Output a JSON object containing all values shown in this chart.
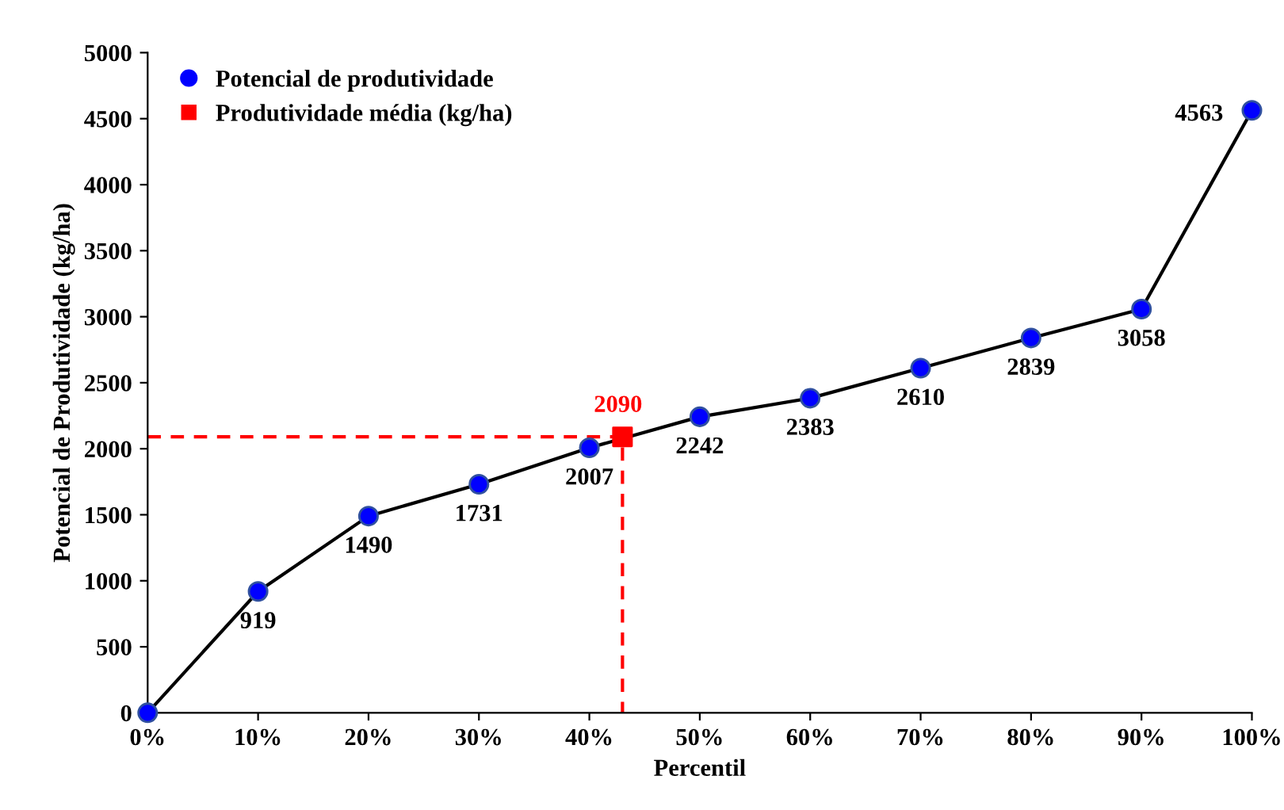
{
  "chart_data": {
    "type": "line",
    "xlabel": "Percentil",
    "ylabel": "Potencial de Produtividade (kg/ha)",
    "xlim": [
      0,
      100
    ],
    "xticks": [
      {
        "value": 0,
        "label": "0%"
      },
      {
        "value": 10,
        "label": "10%"
      },
      {
        "value": 20,
        "label": "20%"
      },
      {
        "value": 30,
        "label": "30%"
      },
      {
        "value": 40,
        "label": "40%"
      },
      {
        "value": 50,
        "label": "50%"
      },
      {
        "value": 60,
        "label": "60%"
      },
      {
        "value": 70,
        "label": "70%"
      },
      {
        "value": 80,
        "label": "80%"
      },
      {
        "value": 90,
        "label": "90%"
      },
      {
        "value": 100,
        "label": "100%"
      }
    ],
    "ylim": [
      0,
      5000
    ],
    "yticks": [
      0,
      500,
      1000,
      1500,
      2000,
      2500,
      3000,
      3500,
      4000,
      4500,
      5000
    ],
    "grid": false,
    "legend": "top left",
    "series": [
      {
        "color": "#ff0000",
        "line_style": "dashed",
        "marker": "none",
        "x": [
          0,
          43,
          43
        ],
        "values": [
          2090,
          2090,
          0
        ]
      },
      {
        "name": "Potencial de produtividade",
        "color": "#0000ff",
        "marker": "circle",
        "line_style": "solid",
        "x": [
          0,
          10,
          20,
          30,
          40,
          50,
          60,
          70,
          80,
          90,
          100
        ],
        "values": [
          0,
          919,
          1490,
          1731,
          2007,
          2242,
          2383,
          2610,
          2839,
          3058,
          4563
        ],
        "value_labels": [
          null,
          "919",
          "1490",
          "1731",
          "2007",
          "2242",
          "2383",
          "2610",
          "2839",
          "3058",
          "4563"
        ]
      },
      {
        "type": "scatter",
        "name": "Produtividade média (kg/ha)",
        "color": "#ff0000",
        "marker": "square",
        "x": [
          43
        ],
        "values": [
          2090
        ],
        "value_labels": [
          "2090"
        ]
      }
    ]
  }
}
